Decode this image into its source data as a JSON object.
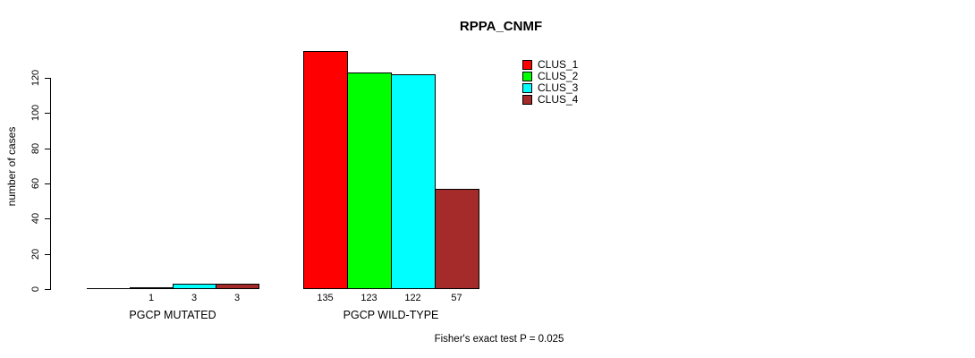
{
  "chart_data": {
    "type": "bar",
    "title": "RPPA_CNMF",
    "ylabel": "number of cases",
    "xlabel": "",
    "yticks": [
      0,
      20,
      40,
      60,
      80,
      100,
      120
    ],
    "ylim": [
      0,
      120
    ],
    "grid": false,
    "legend_position": "top-right-inside",
    "categories": [
      "PGCP MUTATED",
      "PGCP WILD-TYPE"
    ],
    "series": [
      {
        "name": "CLUS_1",
        "color": "#FF0000",
        "values": [
          0,
          135
        ]
      },
      {
        "name": "CLUS_2",
        "color": "#00FF00",
        "values": [
          1,
          123
        ]
      },
      {
        "name": "CLUS_3",
        "color": "#00FFFF",
        "values": [
          3,
          122
        ]
      },
      {
        "name": "CLUS_4",
        "color": "#A52A2A",
        "values": [
          3,
          57
        ]
      }
    ],
    "bar_value_labels": [
      [
        "",
        "1",
        "3",
        "3"
      ],
      [
        "135",
        "123",
        "122",
        "57"
      ]
    ],
    "annotation": "Fisher's exact test P = 0.025"
  }
}
